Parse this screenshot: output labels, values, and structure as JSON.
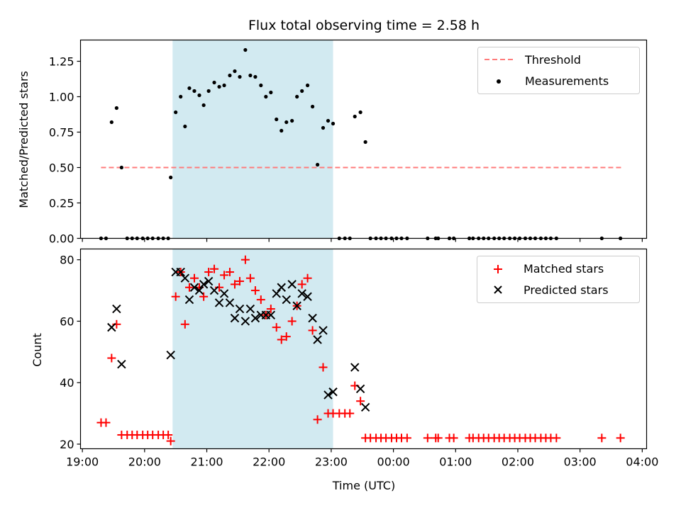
{
  "chart_data": {
    "type": "scatter",
    "title": "Flux total observing time = 2.58 h",
    "xlabel": "Time (UTC)",
    "x_ticks": [
      "19:00",
      "20:00",
      "21:00",
      "22:00",
      "23:00",
      "00:00",
      "01:00",
      "02:00",
      "03:00",
      "04:00"
    ],
    "xlim_hours": [
      18.97,
      28.07
    ],
    "shaded_interval_hours": [
      20.45,
      23.03
    ],
    "shade_color": "#add8e6",
    "top": {
      "ylabel": "Matched/Predicted stars",
      "ylim": [
        0,
        1.4
      ],
      "y_ticks": [
        0.0,
        0.25,
        0.5,
        0.75,
        1.0,
        1.25
      ],
      "threshold": {
        "name": "Threshold",
        "value": 0.5,
        "x_range": [
          19.3,
          27.7
        ],
        "color": "#ff7b7b"
      },
      "legend": [
        "Threshold",
        "Measurements"
      ],
      "measurements": {
        "name": "Measurements",
        "color": "#000000",
        "points": [
          [
            19.3,
            0
          ],
          [
            19.38,
            0
          ],
          [
            19.47,
            0.82
          ],
          [
            19.55,
            0.92
          ],
          [
            19.63,
            0.5
          ],
          [
            19.72,
            0
          ],
          [
            19.8,
            0
          ],
          [
            19.88,
            0
          ],
          [
            19.97,
            0
          ],
          [
            20.05,
            0
          ],
          [
            20.13,
            0
          ],
          [
            20.22,
            0
          ],
          [
            20.3,
            0
          ],
          [
            20.38,
            0
          ],
          [
            20.42,
            0.43
          ],
          [
            20.5,
            0.89
          ],
          [
            20.58,
            1.0
          ],
          [
            20.65,
            0.79
          ],
          [
            20.72,
            1.06
          ],
          [
            20.8,
            1.04
          ],
          [
            20.88,
            1.01
          ],
          [
            20.95,
            0.94
          ],
          [
            21.03,
            1.04
          ],
          [
            21.12,
            1.1
          ],
          [
            21.2,
            1.07
          ],
          [
            21.28,
            1.08
          ],
          [
            21.37,
            1.15
          ],
          [
            21.45,
            1.18
          ],
          [
            21.53,
            1.14
          ],
          [
            21.62,
            1.33
          ],
          [
            21.7,
            1.15
          ],
          [
            21.78,
            1.14
          ],
          [
            21.87,
            1.08
          ],
          [
            21.95,
            1.0
          ],
          [
            22.03,
            1.03
          ],
          [
            22.12,
            0.84
          ],
          [
            22.2,
            0.76
          ],
          [
            22.28,
            0.82
          ],
          [
            22.37,
            0.83
          ],
          [
            22.45,
            1.0
          ],
          [
            22.53,
            1.04
          ],
          [
            22.62,
            1.08
          ],
          [
            22.7,
            0.93
          ],
          [
            22.78,
            0.52
          ],
          [
            22.87,
            0.78
          ],
          [
            22.95,
            0.83
          ],
          [
            23.03,
            0.81
          ],
          [
            23.13,
            0
          ],
          [
            23.22,
            0
          ],
          [
            23.3,
            0
          ],
          [
            23.38,
            0.86
          ],
          [
            23.47,
            0.89
          ],
          [
            23.55,
            0.68
          ],
          [
            23.63,
            0
          ],
          [
            23.72,
            0
          ],
          [
            23.8,
            0
          ],
          [
            23.88,
            0
          ],
          [
            23.97,
            0
          ],
          [
            24.05,
            0
          ],
          [
            24.13,
            0
          ],
          [
            24.22,
            0
          ],
          [
            24.55,
            0
          ],
          [
            24.68,
            0
          ],
          [
            24.72,
            0
          ],
          [
            24.9,
            0
          ],
          [
            24.97,
            0
          ],
          [
            25.22,
            0
          ],
          [
            25.28,
            0
          ],
          [
            25.37,
            0
          ],
          [
            25.45,
            0
          ],
          [
            25.53,
            0
          ],
          [
            25.62,
            0
          ],
          [
            25.7,
            0
          ],
          [
            25.78,
            0
          ],
          [
            25.87,
            0
          ],
          [
            25.95,
            0
          ],
          [
            26.03,
            0
          ],
          [
            26.12,
            0
          ],
          [
            26.2,
            0
          ],
          [
            26.28,
            0
          ],
          [
            26.37,
            0
          ],
          [
            26.45,
            0
          ],
          [
            26.53,
            0
          ],
          [
            26.62,
            0
          ],
          [
            27.35,
            0
          ],
          [
            27.65,
            0
          ]
        ]
      }
    },
    "bottom": {
      "ylabel": "Count",
      "ylim": [
        18.5,
        83.5
      ],
      "y_ticks": [
        20,
        40,
        60,
        80
      ],
      "legend": [
        "Matched stars",
        "Predicted stars"
      ],
      "series": [
        {
          "name": "Matched stars",
          "marker": "+",
          "color": "#ff0000",
          "points": [
            [
              19.3,
              27
            ],
            [
              19.38,
              27
            ],
            [
              19.47,
              48
            ],
            [
              19.55,
              59
            ],
            [
              19.63,
              23
            ],
            [
              19.72,
              23
            ],
            [
              19.8,
              23
            ],
            [
              19.88,
              23
            ],
            [
              19.97,
              23
            ],
            [
              20.05,
              23
            ],
            [
              20.13,
              23
            ],
            [
              20.22,
              23
            ],
            [
              20.3,
              23
            ],
            [
              20.38,
              23
            ],
            [
              20.42,
              21
            ],
            [
              20.5,
              68
            ],
            [
              20.58,
              76
            ],
            [
              20.65,
              59
            ],
            [
              20.72,
              71
            ],
            [
              20.8,
              74
            ],
            [
              20.88,
              71
            ],
            [
              20.95,
              68
            ],
            [
              21.03,
              76
            ],
            [
              21.12,
              77
            ],
            [
              21.2,
              71
            ],
            [
              21.28,
              75
            ],
            [
              21.37,
              76
            ],
            [
              21.45,
              72
            ],
            [
              21.53,
              73
            ],
            [
              21.62,
              80
            ],
            [
              21.7,
              74
            ],
            [
              21.78,
              70
            ],
            [
              21.87,
              67
            ],
            [
              21.95,
              62
            ],
            [
              22.03,
              64
            ],
            [
              22.12,
              58
            ],
            [
              22.2,
              54
            ],
            [
              22.28,
              55
            ],
            [
              22.37,
              60
            ],
            [
              22.45,
              65
            ],
            [
              22.53,
              72
            ],
            [
              22.62,
              74
            ],
            [
              22.7,
              57
            ],
            [
              22.78,
              28
            ],
            [
              22.87,
              45
            ],
            [
              22.95,
              30
            ],
            [
              23.03,
              30
            ],
            [
              23.13,
              30
            ],
            [
              23.22,
              30
            ],
            [
              23.3,
              30
            ],
            [
              23.38,
              39
            ],
            [
              23.47,
              34
            ],
            [
              23.55,
              22
            ],
            [
              23.63,
              22
            ],
            [
              23.72,
              22
            ],
            [
              23.8,
              22
            ],
            [
              23.88,
              22
            ],
            [
              23.97,
              22
            ],
            [
              24.05,
              22
            ],
            [
              24.13,
              22
            ],
            [
              24.22,
              22
            ],
            [
              24.55,
              22
            ],
            [
              24.68,
              22
            ],
            [
              24.72,
              22
            ],
            [
              24.9,
              22
            ],
            [
              24.97,
              22
            ],
            [
              25.22,
              22
            ],
            [
              25.28,
              22
            ],
            [
              25.37,
              22
            ],
            [
              25.45,
              22
            ],
            [
              25.53,
              22
            ],
            [
              25.62,
              22
            ],
            [
              25.7,
              22
            ],
            [
              25.78,
              22
            ],
            [
              25.87,
              22
            ],
            [
              25.95,
              22
            ],
            [
              26.03,
              22
            ],
            [
              26.12,
              22
            ],
            [
              26.2,
              22
            ],
            [
              26.28,
              22
            ],
            [
              26.37,
              22
            ],
            [
              26.45,
              22
            ],
            [
              26.53,
              22
            ],
            [
              26.62,
              22
            ],
            [
              27.35,
              22
            ],
            [
              27.65,
              22
            ]
          ]
        },
        {
          "name": "Predicted stars",
          "marker": "x",
          "color": "#000000",
          "points": [
            [
              19.47,
              58
            ],
            [
              19.55,
              64
            ],
            [
              19.63,
              46
            ],
            [
              20.42,
              49
            ],
            [
              20.5,
              76
            ],
            [
              20.58,
              76
            ],
            [
              20.65,
              74
            ],
            [
              20.72,
              67
            ],
            [
              20.8,
              71
            ],
            [
              20.88,
              70
            ],
            [
              20.95,
              72
            ],
            [
              21.03,
              73
            ],
            [
              21.12,
              70
            ],
            [
              21.2,
              66
            ],
            [
              21.28,
              69
            ],
            [
              21.37,
              66
            ],
            [
              21.45,
              61
            ],
            [
              21.53,
              64
            ],
            [
              21.62,
              60
            ],
            [
              21.7,
              64
            ],
            [
              21.78,
              61
            ],
            [
              21.87,
              62
            ],
            [
              21.95,
              62
            ],
            [
              22.03,
              62
            ],
            [
              22.12,
              69
            ],
            [
              22.2,
              71
            ],
            [
              22.28,
              67
            ],
            [
              22.37,
              72
            ],
            [
              22.45,
              65
            ],
            [
              22.53,
              69
            ],
            [
              22.62,
              68
            ],
            [
              22.7,
              61
            ],
            [
              22.78,
              54
            ],
            [
              22.87,
              57
            ],
            [
              22.95,
              36
            ],
            [
              23.03,
              37
            ],
            [
              23.38,
              45
            ],
            [
              23.47,
              38
            ],
            [
              23.55,
              32
            ]
          ]
        }
      ]
    }
  }
}
